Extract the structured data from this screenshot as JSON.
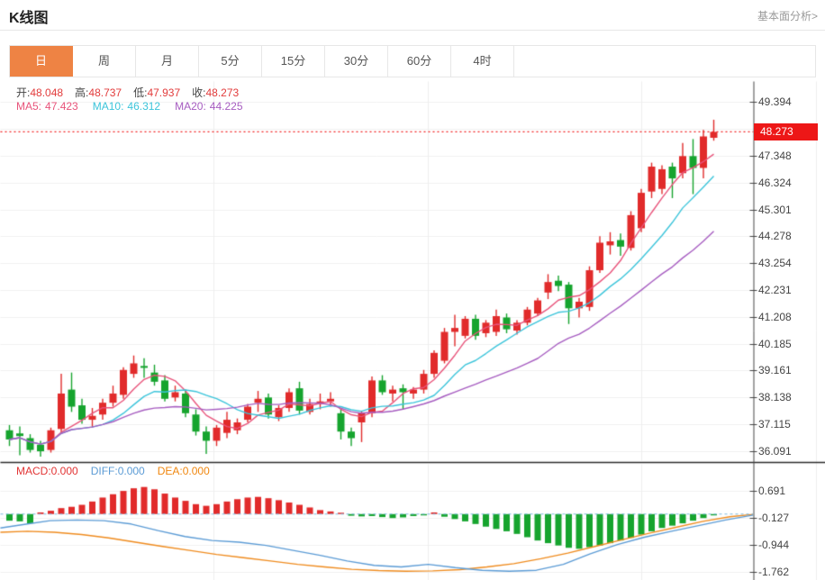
{
  "header": {
    "title": "K线图",
    "link": "基本面分析>"
  },
  "tabs": {
    "items": [
      "日",
      "周",
      "月",
      "5分",
      "15分",
      "30分",
      "60分",
      "4时"
    ],
    "active_index": 0
  },
  "ohlc_legend": [
    {
      "label": "开:",
      "value": "48.048"
    },
    {
      "label": "高:",
      "value": "48.737"
    },
    {
      "label": "低:",
      "value": "47.937"
    },
    {
      "label": "收:",
      "value": "48.273"
    }
  ],
  "ma_legend": [
    {
      "label": "MA5:",
      "value": "47.423",
      "color": "#e8537a"
    },
    {
      "label": "MA10:",
      "value": "46.312",
      "color": "#3bc4da"
    },
    {
      "label": "MA20:",
      "value": "44.225",
      "color": "#a65cc0"
    }
  ],
  "macd_legend": [
    {
      "label": "MACD:",
      "value": "0.000",
      "color": "#e23434"
    },
    {
      "label": "DIFF:",
      "value": "0.000",
      "color": "#5b9bd5"
    },
    {
      "label": "DEA:",
      "value": "0.000",
      "color": "#f0870f"
    }
  ],
  "price_badge": "48.273",
  "chart_data": {
    "type": "candlestick",
    "title": "K线图",
    "legend_position": "top-left",
    "grid": true,
    "colors": {
      "up": "#e12b2b",
      "down": "#16a42e",
      "ma5": "#e8537a",
      "ma10": "#3bc4da",
      "ma20": "#a65cc0",
      "diff": "#5b9bd5",
      "dea": "#ef8b1e",
      "current_line": "#f32222",
      "badge": "#ed1717",
      "tab_active": "#ee8344"
    },
    "price_axis": {
      "current_price": 48.273,
      "ylim": [
        35.8,
        49.6
      ],
      "ticks": [
        {
          "value": 49.394,
          "show": true
        },
        {
          "value": 48.371,
          "show": false
        },
        {
          "value": 47.348,
          "show": true
        },
        {
          "value": 46.324,
          "show": true
        },
        {
          "value": 45.301,
          "show": true
        },
        {
          "value": 44.278,
          "show": true
        },
        {
          "value": 43.254,
          "show": true
        },
        {
          "value": 42.231,
          "show": true
        },
        {
          "value": 41.208,
          "show": true
        },
        {
          "value": 40.185,
          "show": true
        },
        {
          "value": 39.161,
          "show": true
        },
        {
          "value": 38.138,
          "show": true
        },
        {
          "value": 37.115,
          "show": true
        },
        {
          "value": 36.091,
          "show": true
        }
      ]
    },
    "ma_periods": [
      5,
      10,
      20
    ],
    "candles": [
      [
        36.9,
        37.1,
        36.3,
        36.55
      ],
      [
        36.78,
        37.05,
        35.95,
        36.68
      ],
      [
        36.6,
        36.75,
        36.05,
        36.15
      ],
      [
        36.35,
        36.5,
        35.9,
        36.1
      ],
      [
        36.15,
        37.0,
        36.05,
        36.9
      ],
      [
        36.95,
        39.05,
        36.8,
        38.3
      ],
      [
        38.45,
        39.1,
        37.6,
        37.8
      ],
      [
        37.85,
        38.1,
        37.15,
        37.3
      ],
      [
        37.3,
        37.75,
        37.0,
        37.45
      ],
      [
        37.5,
        38.1,
        37.3,
        37.95
      ],
      [
        37.95,
        38.6,
        37.8,
        38.3
      ],
      [
        38.25,
        39.3,
        38.1,
        39.2
      ],
      [
        39.05,
        39.75,
        38.9,
        39.45
      ],
      [
        39.35,
        39.65,
        38.9,
        39.28
      ],
      [
        39.1,
        39.4,
        38.6,
        38.75
      ],
      [
        38.8,
        39.0,
        38.0,
        38.1
      ],
      [
        38.15,
        38.6,
        38.0,
        38.35
      ],
      [
        38.3,
        38.45,
        37.4,
        37.55
      ],
      [
        37.5,
        37.7,
        36.7,
        36.85
      ],
      [
        36.85,
        37.05,
        36.0,
        36.5
      ],
      [
        36.5,
        37.1,
        36.3,
        37.0
      ],
      [
        36.8,
        37.6,
        36.6,
        37.3
      ],
      [
        36.9,
        37.35,
        36.75,
        37.2
      ],
      [
        37.3,
        37.9,
        37.2,
        37.8
      ],
      [
        37.95,
        38.4,
        37.6,
        38.1
      ],
      [
        38.15,
        38.3,
        37.35,
        37.5
      ],
      [
        37.4,
        37.85,
        37.25,
        37.75
      ],
      [
        37.75,
        38.5,
        37.6,
        38.35
      ],
      [
        38.5,
        38.75,
        37.5,
        37.65
      ],
      [
        37.6,
        38.1,
        37.5,
        37.9
      ],
      [
        37.9,
        38.3,
        37.7,
        38.0
      ],
      [
        38.0,
        38.35,
        37.8,
        38.1
      ],
      [
        37.55,
        37.7,
        36.55,
        36.85
      ],
      [
        36.85,
        37.0,
        36.3,
        36.6
      ],
      [
        37.2,
        37.65,
        36.45,
        37.55
      ],
      [
        37.55,
        38.95,
        37.4,
        38.8
      ],
      [
        38.8,
        39.0,
        38.25,
        38.35
      ],
      [
        38.3,
        38.6,
        38.0,
        38.45
      ],
      [
        38.5,
        38.65,
        37.7,
        38.35
      ],
      [
        38.3,
        38.55,
        38.1,
        38.45
      ],
      [
        38.45,
        39.2,
        38.3,
        39.05
      ],
      [
        39.05,
        39.95,
        38.9,
        39.85
      ],
      [
        39.55,
        40.8,
        39.45,
        40.65
      ],
      [
        40.65,
        41.3,
        40.1,
        40.8
      ],
      [
        40.5,
        41.25,
        40.4,
        41.15
      ],
      [
        41.15,
        41.3,
        40.35,
        40.5
      ],
      [
        40.6,
        41.1,
        40.45,
        41.0
      ],
      [
        40.65,
        41.5,
        40.5,
        41.25
      ],
      [
        41.2,
        41.35,
        40.6,
        40.75
      ],
      [
        40.7,
        41.1,
        40.55,
        41.0
      ],
      [
        41.0,
        41.6,
        40.9,
        41.5
      ],
      [
        41.35,
        41.95,
        41.25,
        41.85
      ],
      [
        42.15,
        42.85,
        41.9,
        42.55
      ],
      [
        42.6,
        42.8,
        42.2,
        42.4
      ],
      [
        42.45,
        42.55,
        40.95,
        41.55
      ],
      [
        41.55,
        41.95,
        41.2,
        41.8
      ],
      [
        41.6,
        43.15,
        41.45,
        43.0
      ],
      [
        43.0,
        44.3,
        42.9,
        44.05
      ],
      [
        43.95,
        44.45,
        43.6,
        44.1
      ],
      [
        44.15,
        44.4,
        43.55,
        43.9
      ],
      [
        43.85,
        45.25,
        43.75,
        45.1
      ],
      [
        44.6,
        46.1,
        44.45,
        45.95
      ],
      [
        46.0,
        47.1,
        45.75,
        46.95
      ],
      [
        46.1,
        47.0,
        45.9,
        46.85
      ],
      [
        46.95,
        47.1,
        45.75,
        46.5
      ],
      [
        46.7,
        47.85,
        46.5,
        47.35
      ],
      [
        47.35,
        48.0,
        45.9,
        46.9
      ],
      [
        46.9,
        48.35,
        46.5,
        48.1
      ],
      [
        48.048,
        48.737,
        47.937,
        48.273
      ]
    ],
    "macd": {
      "ticks": [
        0.691,
        -0.127,
        -0.944,
        -1.762
      ],
      "histogram": [
        -0.2,
        -0.22,
        -0.28,
        0.05,
        0.1,
        0.18,
        0.22,
        0.28,
        0.38,
        0.5,
        0.6,
        0.7,
        0.78,
        0.82,
        0.75,
        0.62,
        0.5,
        0.4,
        0.3,
        0.25,
        0.3,
        0.38,
        0.45,
        0.5,
        0.52,
        0.48,
        0.42,
        0.35,
        0.28,
        0.2,
        0.12,
        0.08,
        0.04,
        -0.05,
        -0.07,
        -0.06,
        -0.09,
        -0.12,
        -0.1,
        -0.06,
        -0.04,
        0.05,
        -0.08,
        -0.15,
        -0.22,
        -0.3,
        -0.38,
        -0.45,
        -0.52,
        -0.6,
        -0.7,
        -0.8,
        -0.88,
        -0.95,
        -1.02,
        -1.05,
        -1.0,
        -0.95,
        -0.88,
        -0.8,
        -0.72,
        -0.62,
        -0.52,
        -0.42,
        -0.35,
        -0.28,
        -0.2,
        -0.12,
        -0.04
      ],
      "diff": [
        [
          0,
          -0.42
        ],
        [
          25,
          -0.32
        ],
        [
          55,
          -0.2
        ],
        [
          85,
          -0.18
        ],
        [
          115,
          -0.2
        ],
        [
          145,
          -0.3
        ],
        [
          175,
          -0.5
        ],
        [
          205,
          -0.68
        ],
        [
          235,
          -0.8
        ],
        [
          265,
          -0.85
        ],
        [
          295,
          -0.95
        ],
        [
          325,
          -1.1
        ],
        [
          355,
          -1.25
        ],
        [
          385,
          -1.42
        ],
        [
          415,
          -1.55
        ],
        [
          445,
          -1.6
        ],
        [
          475,
          -1.52
        ],
        [
          505,
          -1.62
        ],
        [
          535,
          -1.7
        ],
        [
          565,
          -1.73
        ],
        [
          595,
          -1.7
        ],
        [
          625,
          -1.52
        ],
        [
          655,
          -1.2
        ],
        [
          685,
          -0.92
        ],
        [
          715,
          -0.7
        ],
        [
          745,
          -0.52
        ],
        [
          775,
          -0.35
        ],
        [
          805,
          -0.18
        ],
        [
          836,
          -0.03
        ]
      ],
      "dea": [
        [
          0,
          -0.55
        ],
        [
          30,
          -0.52
        ],
        [
          60,
          -0.55
        ],
        [
          90,
          -0.62
        ],
        [
          120,
          -0.72
        ],
        [
          150,
          -0.85
        ],
        [
          180,
          -0.98
        ],
        [
          210,
          -1.1
        ],
        [
          240,
          -1.22
        ],
        [
          270,
          -1.32
        ],
        [
          300,
          -1.42
        ],
        [
          330,
          -1.52
        ],
        [
          360,
          -1.6
        ],
        [
          390,
          -1.67
        ],
        [
          420,
          -1.71
        ],
        [
          450,
          -1.73
        ],
        [
          480,
          -1.72
        ],
        [
          510,
          -1.68
        ],
        [
          540,
          -1.6
        ],
        [
          570,
          -1.5
        ],
        [
          600,
          -1.35
        ],
        [
          630,
          -1.18
        ],
        [
          660,
          -0.98
        ],
        [
          690,
          -0.78
        ],
        [
          720,
          -0.58
        ],
        [
          750,
          -0.4
        ],
        [
          780,
          -0.22
        ],
        [
          810,
          -0.08
        ],
        [
          836,
          -0.01
        ]
      ]
    }
  }
}
